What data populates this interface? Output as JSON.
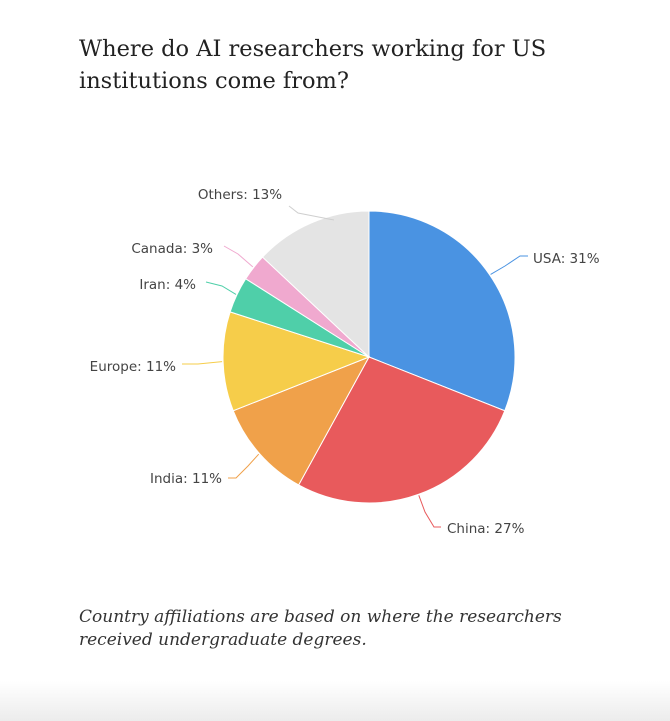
{
  "chart_data": {
    "type": "pie",
    "title_lines": [
      "Where do AI researchers working for US",
      "institutions come from?"
    ],
    "caption_lines": [
      "Country affiliations are based on where the researchers",
      "received undergraduate degrees."
    ],
    "slices": [
      {
        "label": "USA",
        "value": 31,
        "display": "USA: 31%",
        "color": "#4a93e2"
      },
      {
        "label": "China",
        "value": 27,
        "display": "China: 27%",
        "color": "#e85a5c"
      },
      {
        "label": "India",
        "value": 11,
        "display": "India: 11%",
        "color": "#f0a14a"
      },
      {
        "label": "Europe",
        "value": 11,
        "display": "Europe: 11%",
        "color": "#f6cd4a"
      },
      {
        "label": "Iran",
        "value": 4,
        "display": "Iran: 4%",
        "color": "#4fcfa9"
      },
      {
        "label": "Canada",
        "value": 3,
        "display": "Canada: 3%",
        "color": "#f0a9cf"
      },
      {
        "label": "Others",
        "value": 13,
        "display": "Others: 13%",
        "color": "#e4e4e4"
      }
    ],
    "start_angle": "12 o'clock",
    "direction": "clockwise",
    "legend": "none"
  }
}
